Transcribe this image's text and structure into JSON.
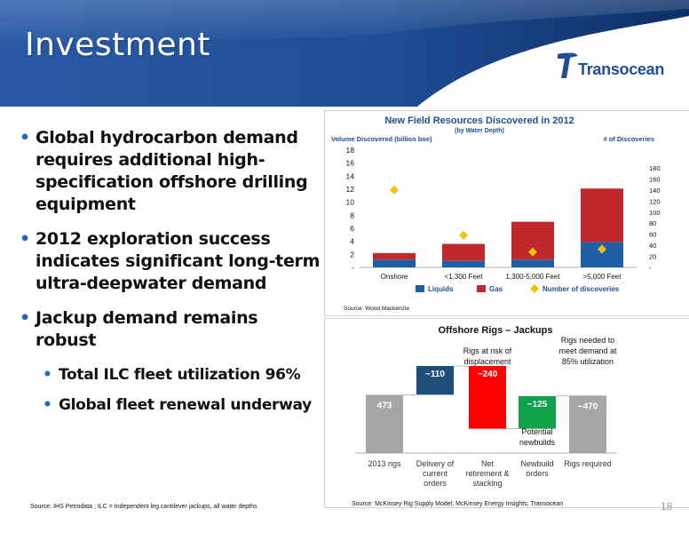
{
  "slide": {
    "title": "Investment",
    "logo_text": "Transocean",
    "page_number": "18",
    "footer_left": "Source:  IHS Petrodata ; ILC  = Independent leg cantilever jackups, all water depths",
    "footer_right": "Source: McKinsey Rig Supply Model;  McKinsey Energy Insights; Transocean",
    "colors": {
      "header_blue": "#1f4e96",
      "header_dark": "#0e2f66",
      "bullet_blue": "#1f6bb5"
    }
  },
  "bullets": [
    {
      "text": "Global hydrocarbon demand requires additional high-specification offshore drilling equipment",
      "sub": []
    },
    {
      "text": "2012 exploration success indicates significant long-term ultra-deepwater demand",
      "sub": []
    },
    {
      "text": "Jackup demand remains robust",
      "sub": [
        "Total ILC fleet utilization 96%",
        "Global fleet renewal underway"
      ]
    }
  ],
  "chart_data": [
    {
      "type": "bar",
      "stacked": true,
      "title": "New Field Resources Discovered in 2012",
      "subtitle": "(by Water Depth)",
      "ylabel": "Volume Discovered (billion boe)",
      "y2label": "# of Discoveries",
      "categories": [
        "Onshore",
        "<1,300 Feet",
        "1,300-5,000 Feet",
        ">5,000 Feet"
      ],
      "ylim": [
        0,
        18
      ],
      "yticks": [
        "-",
        "2",
        "4",
        "6",
        "8",
        "10",
        "12",
        "14",
        "16",
        "18"
      ],
      "y2lim": [
        0,
        180
      ],
      "y2ticks": [
        "-",
        "20",
        "40",
        "60",
        "80",
        "100",
        "120",
        "140",
        "160",
        "180"
      ],
      "series": [
        {
          "name": "Liquids",
          "kind": "bar",
          "color": "#1f5fa6",
          "values": [
            1.2,
            1.0,
            1.2,
            3.9
          ]
        },
        {
          "name": "Gas",
          "kind": "bar",
          "color": "#c0282d",
          "values": [
            1.0,
            2.6,
            5.8,
            8.2
          ]
        },
        {
          "name": "Number of discoveries",
          "kind": "marker",
          "axis": "y2",
          "color": "#f4c20d",
          "values": [
            140,
            58,
            28,
            33
          ]
        }
      ],
      "legend_position": "bottom",
      "source": "Source: Wood Mackenzie"
    },
    {
      "type": "waterfall",
      "title": "Offshore Rigs – Jackups",
      "categories": [
        "2013 rigs",
        "Delivery of current orders",
        "Net retirement & stacking",
        "Newbuild orders",
        "Rigs required"
      ],
      "values": [
        473,
        110,
        -240,
        125,
        470
      ],
      "labels": [
        "473",
        "~110",
        "~240",
        "~125",
        "~470"
      ],
      "colors": [
        "#a6a6a6",
        "#1f4e79",
        "#ff0000",
        "#12a24a",
        "#a6a6a6"
      ],
      "annotations": [
        "Rigs at risk of displacement",
        "Rigs needed to meet demand at 85% utilization",
        "Potential newbuilds"
      ]
    }
  ]
}
